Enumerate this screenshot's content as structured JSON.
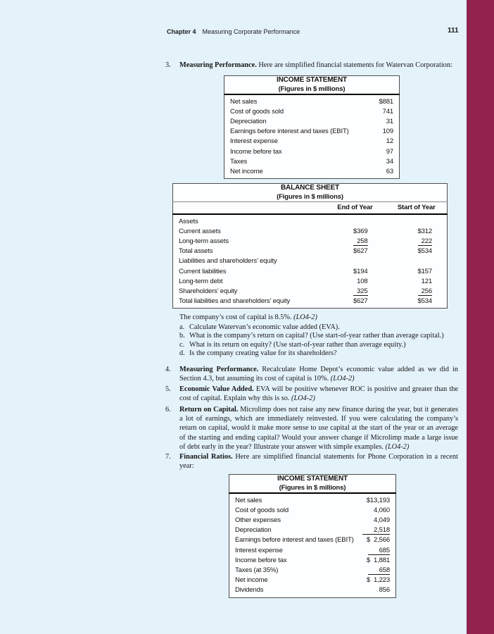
{
  "colors": {
    "page_bg": "#e4f2fa",
    "stripe": "#93234e",
    "text": "#161616"
  },
  "header": {
    "chapter": "Chapter 4",
    "title": "Measuring Corporate Performance",
    "page_number": "111"
  },
  "problems": {
    "p3": {
      "number": "3.",
      "lead": "Measuring Performance.",
      "text": "Here are simplified financial statements for Watervan Corporation:"
    },
    "p3_capital": {
      "text": "The company’s cost of capital is 8.5%. ",
      "lo": "(LO4-2)"
    },
    "p3_items": [
      {
        "letter": "a.",
        "text": "Calculate Watervan’s economic value added (EVA)."
      },
      {
        "letter": "b.",
        "text": "What is the company’s return on capital? (Use start-of-year rather than average capital.)"
      },
      {
        "letter": "c.",
        "text": "What is its return on equity? (Use start-of-year rather than average equity.)"
      },
      {
        "letter": "d.",
        "text": "Is the company creating value for its shareholders?"
      }
    ],
    "p4": {
      "number": "4.",
      "lead": "Measuring Performance.",
      "text": "Recalculate Home Depot’s economic value added as we did in Section 4.3, but assuming its cost of capital is 10%. ",
      "lo": "(LO4-2)"
    },
    "p5": {
      "number": "5.",
      "lead": "Economic Value Added.",
      "text": "EVA will be positive whenever ROC is positive and greater than the cost of capital. Explain why this is so. ",
      "lo": "(LO4-2)"
    },
    "p6": {
      "number": "6.",
      "lead": "Return on Capital.",
      "text": "Microlimp does not raise any new finance during the year, but it generates a lot of earnings, which are immediately reinvested. If you were calculating the company’s return on capital, would it make more sense to use capital at the start of the year or an average of the starting and ending capital? Would your answer change if Microlimp made a large issue of debt early in the year? Illustrate your answer with simple examples. ",
      "lo": "(LO4-2)"
    },
    "p7": {
      "number": "7.",
      "lead": "Financial Ratios.",
      "text": "Here are simplified financial statements for Phone Corporation in a recent year:"
    }
  },
  "income_statement_1": {
    "title": "INCOME STATEMENT",
    "subtitle": "(Figures in $ millions)",
    "rows": [
      {
        "label": "Net sales",
        "value": "$881"
      },
      {
        "label": "Cost of goods sold",
        "value": "741"
      },
      {
        "label": "Depreciation",
        "value": "31"
      },
      {
        "label": "Earnings before interest and taxes (EBIT)",
        "value": "109"
      },
      {
        "label": "Interest expense",
        "value": "12"
      },
      {
        "label": "Income before tax",
        "value": "97"
      },
      {
        "label": "Taxes",
        "value": "34"
      },
      {
        "label": "Net income",
        "value": "63"
      }
    ]
  },
  "balance_sheet": {
    "title": "BALANCE SHEET",
    "subtitle": "(Figures in $ millions)",
    "col1": "End of Year",
    "col2": "Start of Year",
    "rows": [
      {
        "label": "Assets",
        "indent": 0,
        "end": "",
        "start": ""
      },
      {
        "label": "Current assets",
        "indent": 1,
        "end": "$369",
        "start": "$312"
      },
      {
        "label": "Long-term assets",
        "indent": 1,
        "end": "258",
        "start": "222",
        "underline": true
      },
      {
        "label": "Total assets",
        "indent": 2,
        "end": "$627",
        "start": "$534"
      },
      {
        "label": "Liabilities and shareholders’ equity",
        "indent": 0,
        "end": "",
        "start": ""
      },
      {
        "label": "Current liabilities",
        "indent": 1,
        "end": "$194",
        "start": "$157"
      },
      {
        "label": "Long-term debt",
        "indent": 1,
        "end": "108",
        "start": "121"
      },
      {
        "label": "Shareholders’ equity",
        "indent": 1,
        "end": "325",
        "start": "256",
        "underline": true
      },
      {
        "label": "Total liabilities and shareholders’ equity",
        "indent": 2,
        "end": "$627",
        "start": "$534"
      }
    ]
  },
  "income_statement_2": {
    "title": "INCOME STATEMENT",
    "subtitle": "(Figures in $ millions)",
    "rows": [
      {
        "label": "Net sales",
        "value": "$13,193"
      },
      {
        "label": "Cost of goods sold",
        "value": "4,060"
      },
      {
        "label": "Other expenses",
        "value": "4,049"
      },
      {
        "label": "Depreciation",
        "value": "2,518",
        "underline": true
      },
      {
        "label": "Earnings before interest and taxes (EBIT)",
        "value": "$  2,566"
      },
      {
        "label": "Interest expense",
        "value": "685",
        "underline": true
      },
      {
        "label": "Income before tax",
        "value": "$  1,881"
      },
      {
        "label": "Taxes (at 35%)",
        "value": "658",
        "underline": true
      },
      {
        "label": "Net income",
        "value": "$  1,223"
      },
      {
        "label": "Dividends",
        "value": "856"
      }
    ]
  }
}
